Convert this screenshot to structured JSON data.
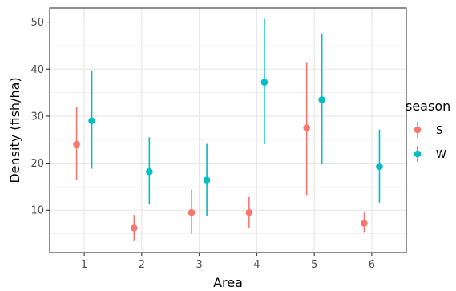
{
  "chart_data": {
    "type": "scatter",
    "xlabel": "Area",
    "ylabel": "Density (fish/ha)",
    "categories": [
      "1",
      "2",
      "3",
      "4",
      "5",
      "6"
    ],
    "ylim": [
      1,
      53
    ],
    "yticks": [
      "10",
      "20",
      "30",
      "40",
      "50"
    ],
    "grid": true,
    "legend": {
      "title": "season",
      "position": "right"
    },
    "series": [
      {
        "name": "S",
        "color": "#F8766D",
        "points": [
          {
            "x": "1",
            "y": 24,
            "low": 16.5,
            "high": 32
          },
          {
            "x": "2",
            "y": 6.2,
            "low": 3.4,
            "high": 9
          },
          {
            "x": "3",
            "y": 9.5,
            "low": 5,
            "high": 14.4
          },
          {
            "x": "4",
            "y": 9.5,
            "low": 6.3,
            "high": 12.8
          },
          {
            "x": "5",
            "y": 27.5,
            "low": 13.2,
            "high": 41.5
          },
          {
            "x": "6",
            "y": 7.2,
            "low": 5.2,
            "high": 9.5
          }
        ]
      },
      {
        "name": "W",
        "color": "#00BFC4",
        "points": [
          {
            "x": "1",
            "y": 29,
            "low": 18.8,
            "high": 39.6
          },
          {
            "x": "2",
            "y": 18.2,
            "low": 11.2,
            "high": 25.5
          },
          {
            "x": "3",
            "y": 16.4,
            "low": 8.8,
            "high": 24.1
          },
          {
            "x": "4",
            "y": 37.2,
            "low": 24,
            "high": 50.7
          },
          {
            "x": "5",
            "y": 33.5,
            "low": 19.8,
            "high": 47.4
          },
          {
            "x": "6",
            "y": 19.3,
            "low": 11.6,
            "high": 27.1
          }
        ]
      }
    ]
  }
}
